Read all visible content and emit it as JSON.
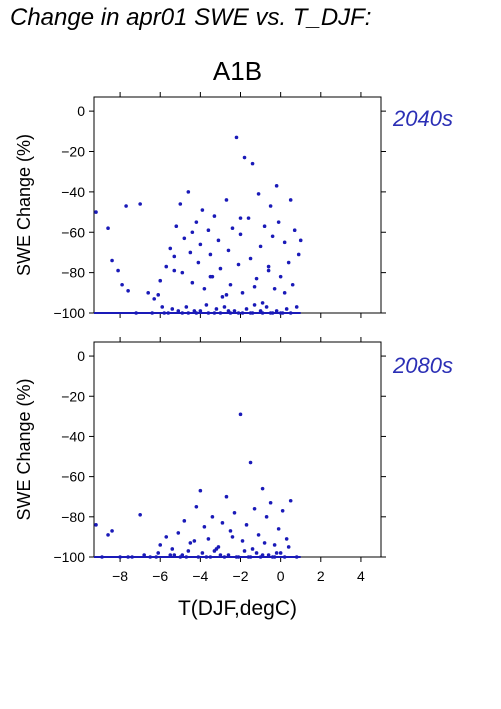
{
  "header": {
    "title": "Change in apr01 SWE vs. T_DJF:",
    "scenario": "A1B"
  },
  "chart_data": [
    {
      "type": "scatter",
      "period_label": "2040s",
      "xlabel": "T(DJF,degC)",
      "ylabel": "SWE Change (%)",
      "xlim": [
        -9.3,
        5
      ],
      "ylim": [
        -100,
        7
      ],
      "xticks": [
        -8,
        -6,
        -4,
        -2,
        0,
        2,
        4
      ],
      "yticks": [
        0,
        -20,
        -40,
        -60,
        -80,
        -100
      ],
      "ytick_labels": [
        "0",
        "−20",
        "−40",
        "−60",
        "−80",
        "−100"
      ],
      "point_color": "#1a1ab8",
      "x": [
        -9.2,
        -8.6,
        -8.4,
        -8.1,
        -7.9,
        -7.7,
        -7.6,
        -7.0,
        -6.6,
        -6.3,
        -6.0,
        -5.7,
        -5.5,
        -5.3,
        -5.2,
        -5.0,
        -4.9,
        -4.8,
        -4.6,
        -4.5,
        -4.4,
        -4.2,
        -4.1,
        -4.0,
        -3.9,
        -3.8,
        -3.6,
        -3.5,
        -3.4,
        -3.3,
        -3.1,
        -3.0,
        -2.9,
        -2.7,
        -2.6,
        -2.5,
        -2.4,
        -2.2,
        -2.1,
        -2.0,
        -1.9,
        -1.8,
        -1.6,
        -1.5,
        -1.4,
        -1.2,
        -1.1,
        -1.0,
        -0.9,
        -0.8,
        -0.6,
        -0.5,
        -0.4,
        -0.3,
        -0.2,
        -0.1,
        0.0,
        0.2,
        0.4,
        0.5,
        0.6,
        0.7,
        0.9,
        1.0,
        -5.9,
        -5.4,
        -4.7,
        -4.3,
        -3.7,
        -3.2,
        -2.8,
        -2.3,
        -1.7,
        -1.3,
        -0.7,
        -0.2,
        0.3,
        0.8,
        -5.6,
        -4.9,
        -4.2,
        -3.6,
        -3.0,
        -2.5,
        -1.9,
        -1.4,
        -0.9,
        -0.4,
        0.1,
        -6.1,
        -5.3,
        -4.4,
        -3.5,
        -2.7,
        -2.0,
        -1.3,
        -0.6,
        0.2,
        -7.2,
        -6.4,
        -5.8,
        -5.1,
        -4.6,
        -4.0,
        -3.3,
        -2.6,
        -2.1,
        -1.5,
        -1.0,
        -0.5,
        0.0,
        0.5
      ],
      "y": [
        -50,
        -58,
        -74,
        -79,
        -86,
        -47,
        -89,
        -46,
        -90,
        -93,
        -84,
        -77,
        -68,
        -72,
        -57,
        -46,
        -80,
        -63,
        -40,
        -70,
        -85,
        -55,
        -75,
        -66,
        -49,
        -88,
        -59,
        -71,
        -82,
        -52,
        -64,
        -78,
        -92,
        -44,
        -69,
        -86,
        -58,
        -13,
        -76,
        -61,
        -90,
        -23,
        -53,
        -73,
        -26,
        -83,
        -41,
        -67,
        -95,
        -57,
        -79,
        -47,
        -62,
        -88,
        -37,
        -55,
        -82,
        -65,
        -75,
        -44,
        -86,
        -59,
        -71,
        -64,
        -97,
        -98,
        -97,
        -99,
        -96,
        -98,
        -97,
        -99,
        -98,
        -96,
        -97,
        -99,
        -98,
        -97,
        -100,
        -100,
        -100,
        -100,
        -100,
        -100,
        -100,
        -100,
        -100,
        -100,
        -100,
        -91,
        -79,
        -60,
        -82,
        -91,
        -53,
        -87,
        -77,
        -90,
        -100,
        -100,
        -100,
        -99,
        -100,
        -99,
        -100,
        -99,
        -100,
        -100,
        -99,
        -100,
        -100,
        -100
      ]
    },
    {
      "type": "scatter",
      "period_label": "2080s",
      "xlabel": "T(DJF,degC)",
      "ylabel": "SWE Change (%)",
      "xlim": [
        -9.3,
        5
      ],
      "ylim": [
        -100,
        7
      ],
      "xticks": [
        -8,
        -6,
        -4,
        -2,
        0,
        2,
        4
      ],
      "xtick_labels": [
        "−8",
        "−6",
        "−4",
        "−2",
        "0",
        "2",
        "4"
      ],
      "yticks": [
        0,
        -20,
        -40,
        -60,
        -80,
        -100
      ],
      "ytick_labels": [
        "0",
        "−20",
        "−40",
        "−60",
        "−80",
        "−100"
      ],
      "point_color": "#1a1ab8",
      "x": [
        -9.2,
        -8.6,
        -8.4,
        -8.0,
        -7.6,
        -7.0,
        -6.5,
        -6.1,
        -5.7,
        -5.4,
        -5.1,
        -4.8,
        -4.5,
        -4.2,
        -4.0,
        -3.8,
        -3.6,
        -3.4,
        -3.1,
        -2.9,
        -2.7,
        -2.5,
        -2.3,
        -2.0,
        -1.9,
        -1.7,
        -1.5,
        -1.3,
        -1.1,
        -0.9,
        -0.7,
        -0.5,
        -0.3,
        -0.1,
        0.1,
        0.3,
        0.5,
        -5.3,
        -4.6,
        -3.9,
        -3.2,
        -2.6,
        -1.8,
        -1.2,
        -0.6,
        0.0,
        -5.0,
        -4.1,
        -3.5,
        -2.8,
        -2.2,
        -1.6,
        -1.0,
        -0.4,
        0.2,
        -6.0,
        -4.9,
        -4.3,
        -3.3,
        -2.4,
        -1.4,
        -0.8,
        -0.2,
        0.4,
        -8.9,
        -7.4,
        -6.8,
        -6.2,
        -5.5,
        -4.7,
        -3.7,
        -3.0,
        -2.1,
        -1.5,
        -0.9,
        -0.3,
        0.8
      ],
      "y": [
        -84,
        -89,
        -87,
        -100,
        -100,
        -79,
        -100,
        -98,
        -90,
        -96,
        -88,
        -82,
        -93,
        -75,
        -67,
        -85,
        -91,
        -80,
        -95,
        -83,
        -70,
        -87,
        -78,
        -29,
        -92,
        -84,
        -53,
        -76,
        -89,
        -66,
        -80,
        -73,
        -94,
        -86,
        -77,
        -91,
        -72,
        -99,
        -97,
        -98,
        -96,
        -99,
        -97,
        -98,
        -99,
        -98,
        -100,
        -100,
        -100,
        -100,
        -100,
        -100,
        -100,
        -100,
        -100,
        -94,
        -99,
        -92,
        -97,
        -90,
        -96,
        -93,
        -98,
        -95,
        -100,
        -100,
        -99,
        -100,
        -99,
        -100,
        -100,
        -99,
        -100,
        -100,
        -99,
        -100,
        -100
      ]
    }
  ]
}
